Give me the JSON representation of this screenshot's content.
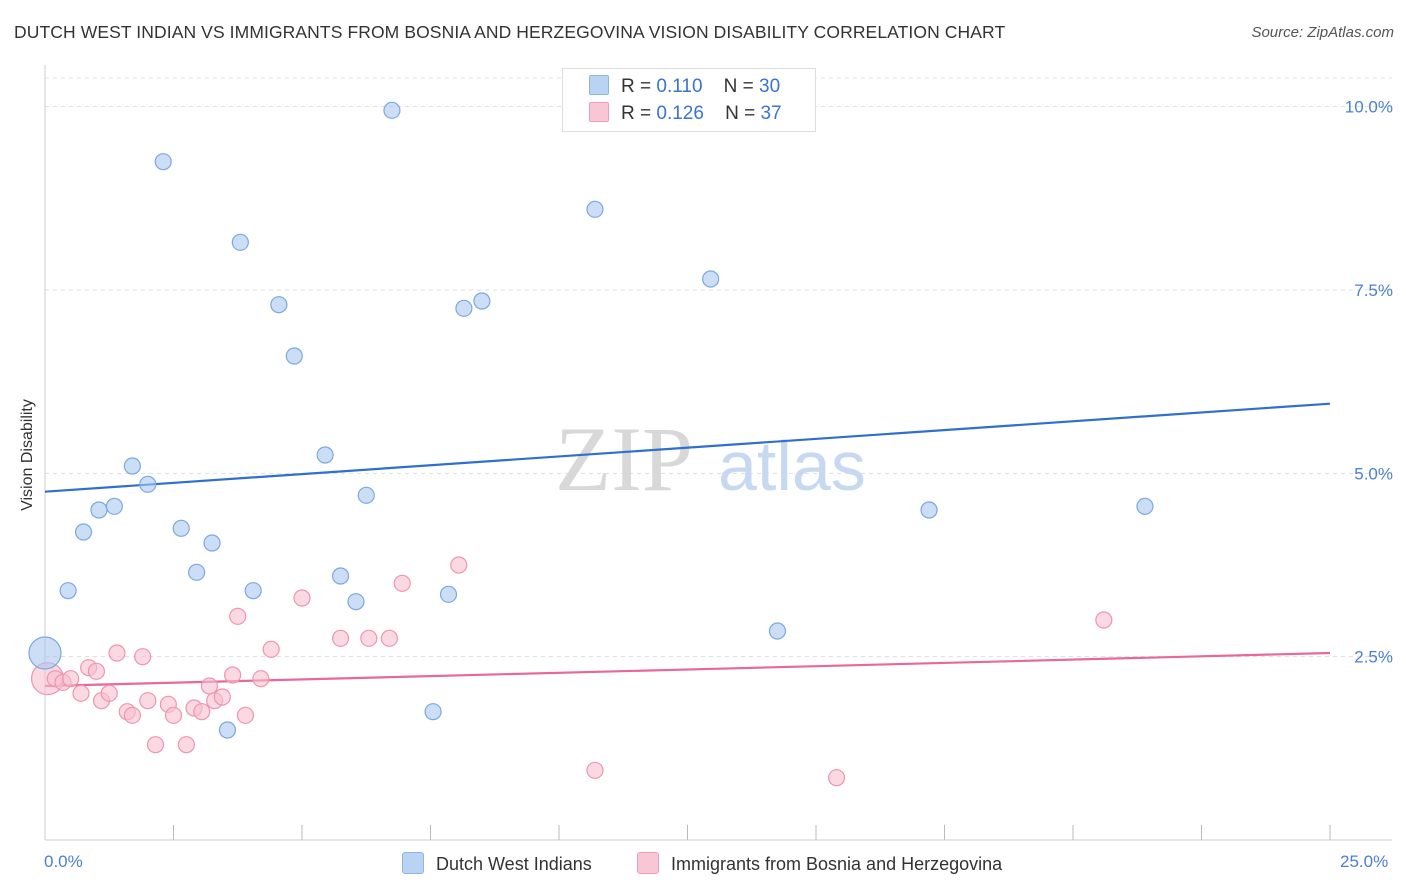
{
  "chart_data": {
    "type": "scatter",
    "title": "DUTCH WEST INDIAN VS IMMIGRANTS FROM BOSNIA AND HERZEGOVINA VISION DISABILITY CORRELATION CHART",
    "source": "Source: ZipAtlas.com",
    "xlabel": "",
    "ylabel": "Vision Disability",
    "xlim": [
      0,
      25
    ],
    "ylim": [
      0,
      10.5
    ],
    "x_tick_labels": [
      "0.0%",
      "25.0%"
    ],
    "y_ticks": [
      2.5,
      5.0,
      7.5,
      10.0
    ],
    "y_tick_labels": [
      "2.5%",
      "5.0%",
      "7.5%",
      "10.0%"
    ],
    "watermark": "ZIPatlas",
    "legend_top": {
      "rows": [
        {
          "r_label": "R =",
          "r_value": "0.110",
          "n_label": "N =",
          "n_value": "30"
        },
        {
          "r_label": "R =",
          "r_value": "0.126",
          "n_label": "N =",
          "n_value": "37"
        }
      ]
    },
    "series": [
      {
        "name": "Dutch West Indians",
        "color": "#a8c8f0",
        "stroke": "#7aa8e0",
        "line_color": "#2f6fd0",
        "trend": {
          "x": [
            0,
            25
          ],
          "y": [
            4.75,
            5.95
          ]
        },
        "points": [
          {
            "x": 0.0,
            "y": 2.55,
            "size": "large"
          },
          {
            "x": 0.45,
            "y": 3.4
          },
          {
            "x": 0.75,
            "y": 4.2
          },
          {
            "x": 1.05,
            "y": 4.5
          },
          {
            "x": 1.35,
            "y": 4.55
          },
          {
            "x": 1.7,
            "y": 5.1
          },
          {
            "x": 2.0,
            "y": 4.85
          },
          {
            "x": 2.3,
            "y": 9.25
          },
          {
            "x": 2.65,
            "y": 4.25
          },
          {
            "x": 2.95,
            "y": 3.65
          },
          {
            "x": 3.25,
            "y": 4.05
          },
          {
            "x": 3.55,
            "y": 1.5
          },
          {
            "x": 3.8,
            "y": 8.15
          },
          {
            "x": 4.05,
            "y": 3.4
          },
          {
            "x": 4.55,
            "y": 7.3
          },
          {
            "x": 4.85,
            "y": 6.6
          },
          {
            "x": 5.45,
            "y": 5.25
          },
          {
            "x": 5.75,
            "y": 3.6
          },
          {
            "x": 6.05,
            "y": 3.25
          },
          {
            "x": 6.25,
            "y": 4.7
          },
          {
            "x": 6.75,
            "y": 9.95
          },
          {
            "x": 7.55,
            "y": 1.75
          },
          {
            "x": 7.85,
            "y": 3.35
          },
          {
            "x": 8.15,
            "y": 7.25
          },
          {
            "x": 8.5,
            "y": 7.35
          },
          {
            "x": 10.7,
            "y": 8.6
          },
          {
            "x": 12.95,
            "y": 7.65
          },
          {
            "x": 14.25,
            "y": 2.85
          },
          {
            "x": 17.2,
            "y": 4.5
          },
          {
            "x": 21.4,
            "y": 4.55
          }
        ]
      },
      {
        "name": "Immigrants from Bosnia and Herzegovina",
        "color": "#f7bfd0",
        "stroke": "#ef94b0",
        "line_color": "#e8689a",
        "trend": {
          "x": [
            0,
            25
          ],
          "y": [
            2.1,
            2.55
          ]
        },
        "points": [
          {
            "x": 0.05,
            "y": 2.2,
            "size": "large"
          },
          {
            "x": 0.2,
            "y": 2.2
          },
          {
            "x": 0.35,
            "y": 2.15
          },
          {
            "x": 0.5,
            "y": 2.2
          },
          {
            "x": 0.7,
            "y": 2.0
          },
          {
            "x": 0.85,
            "y": 2.35
          },
          {
            "x": 1.0,
            "y": 2.3
          },
          {
            "x": 1.1,
            "y": 1.9
          },
          {
            "x": 1.25,
            "y": 2.0
          },
          {
            "x": 1.4,
            "y": 2.55
          },
          {
            "x": 1.6,
            "y": 1.75
          },
          {
            "x": 1.7,
            "y": 1.7
          },
          {
            "x": 1.9,
            "y": 2.5
          },
          {
            "x": 2.0,
            "y": 1.9
          },
          {
            "x": 2.15,
            "y": 1.3
          },
          {
            "x": 2.4,
            "y": 1.85
          },
          {
            "x": 2.5,
            "y": 1.7
          },
          {
            "x": 2.75,
            "y": 1.3
          },
          {
            "x": 2.9,
            "y": 1.8
          },
          {
            "x": 3.05,
            "y": 1.75
          },
          {
            "x": 3.2,
            "y": 2.1
          },
          {
            "x": 3.3,
            "y": 1.9
          },
          {
            "x": 3.45,
            "y": 1.95
          },
          {
            "x": 3.65,
            "y": 2.25
          },
          {
            "x": 3.75,
            "y": 3.05
          },
          {
            "x": 3.9,
            "y": 1.7
          },
          {
            "x": 4.2,
            "y": 2.2
          },
          {
            "x": 4.4,
            "y": 2.6
          },
          {
            "x": 5.0,
            "y": 3.3
          },
          {
            "x": 5.75,
            "y": 2.75
          },
          {
            "x": 6.3,
            "y": 2.75
          },
          {
            "x": 6.7,
            "y": 2.75
          },
          {
            "x": 6.95,
            "y": 3.5
          },
          {
            "x": 8.05,
            "y": 3.75
          },
          {
            "x": 10.7,
            "y": 0.95
          },
          {
            "x": 15.4,
            "y": 0.85
          },
          {
            "x": 20.6,
            "y": 3.0
          }
        ]
      }
    ]
  }
}
